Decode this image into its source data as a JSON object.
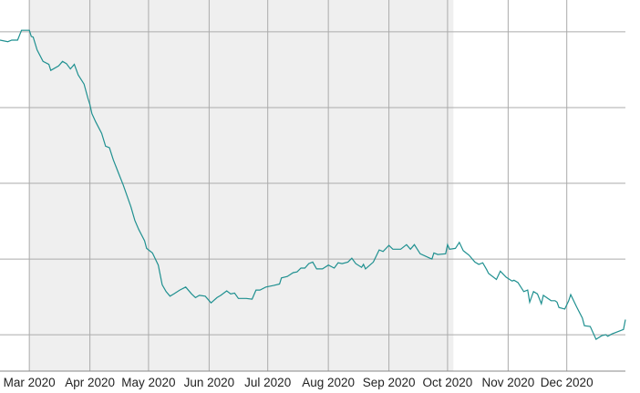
{
  "chart_data": {
    "type": "line",
    "title": "",
    "xlabel": "",
    "ylabel": "",
    "x_tick_labels": [
      "Mar 2020",
      "Apr 2020",
      "May 2020",
      "Jun 2020",
      "Jul 2020",
      "Aug 2020",
      "Sep 2020",
      "Oct 2020",
      "Nov 2020",
      "Dec 2020"
    ],
    "x_ticks": [
      "2020-03-01",
      "2020-04-01",
      "2020-05-01",
      "2020-06-01",
      "2020-07-01",
      "2020-08-01",
      "2020-09-01",
      "2020-10-01",
      "2020-11-01",
      "2020-12-01"
    ],
    "xlim": [
      "2020-02-15",
      "2020-12-31"
    ],
    "y_gridlines": [
      1,
      2,
      3,
      4,
      5
    ],
    "y_tick_labels_shown": false,
    "ylim": [
      0.52,
      5.42
    ],
    "grid": true,
    "shaded_region": {
      "start": "2020-03-01",
      "end": "2020-10-04",
      "color": "#efefef"
    },
    "colors": {
      "line": "#1f9090",
      "grid": "#ababab",
      "axis": "#888888"
    },
    "series": [
      {
        "x": [
          "2020-02-15",
          "2020-02-19",
          "2020-02-21",
          "2020-02-24",
          "2020-02-26",
          "2020-03-01",
          "2020-03-02",
          "2020-03-03",
          "2020-03-05",
          "2020-03-08",
          "2020-03-11",
          "2020-03-12",
          "2020-03-16",
          "2020-03-18",
          "2020-03-20",
          "2020-03-22",
          "2020-03-24",
          "2020-03-26",
          "2020-03-29",
          "2020-03-31",
          "2020-04-01",
          "2020-04-02",
          "2020-04-04",
          "2020-04-07",
          "2020-04-09",
          "2020-04-11",
          "2020-04-13",
          "2020-04-16",
          "2020-04-18",
          "2020-04-22",
          "2020-04-24",
          "2020-04-26",
          "2020-04-29",
          "2020-04-30",
          "2020-05-03",
          "2020-05-06",
          "2020-05-08",
          "2020-05-10",
          "2020-05-12",
          "2020-05-14",
          "2020-05-17",
          "2020-05-20",
          "2020-05-23",
          "2020-05-25",
          "2020-05-27",
          "2020-05-30",
          "2020-06-02",
          "2020-06-05",
          "2020-06-07",
          "2020-06-10",
          "2020-06-12",
          "2020-06-14",
          "2020-06-16",
          "2020-06-20",
          "2020-06-23",
          "2020-06-25",
          "2020-06-27",
          "2020-06-30",
          "2020-07-04",
          "2020-07-07",
          "2020-07-08",
          "2020-07-11",
          "2020-07-14",
          "2020-07-16",
          "2020-07-18",
          "2020-07-20",
          "2020-07-22",
          "2020-07-24",
          "2020-07-26",
          "2020-07-29",
          "2020-08-01",
          "2020-08-04",
          "2020-08-06",
          "2020-08-08",
          "2020-08-11",
          "2020-08-13",
          "2020-08-15",
          "2020-08-18",
          "2020-08-19",
          "2020-08-20",
          "2020-08-24",
          "2020-08-27",
          "2020-08-29",
          "2020-09-01",
          "2020-09-03",
          "2020-09-07",
          "2020-09-10",
          "2020-09-12",
          "2020-09-14",
          "2020-09-17",
          "2020-09-22",
          "2020-09-23",
          "2020-09-24",
          "2020-09-26",
          "2020-09-30",
          "2020-10-01",
          "2020-10-02",
          "2020-10-05",
          "2020-10-07",
          "2020-10-09",
          "2020-10-12",
          "2020-10-15",
          "2020-10-17",
          "2020-10-19",
          "2020-10-21",
          "2020-10-22",
          "2020-10-26",
          "2020-10-28",
          "2020-10-31",
          "2020-11-03",
          "2020-11-04",
          "2020-11-06",
          "2020-11-09",
          "2020-11-11",
          "2020-11-12",
          "2020-11-14",
          "2020-11-16",
          "2020-11-18",
          "2020-11-19",
          "2020-11-23",
          "2020-11-25",
          "2020-11-26",
          "2020-11-27",
          "2020-11-30",
          "2020-12-02",
          "2020-12-03",
          "2020-12-06",
          "2020-12-09",
          "2020-12-10",
          "2020-12-13",
          "2020-12-16",
          "2020-12-19",
          "2020-12-21",
          "2020-12-22",
          "2020-12-24",
          "2020-12-30",
          "2020-12-31"
        ],
        "y": [
          4.89,
          4.87,
          4.89,
          4.89,
          5.02,
          5.02,
          4.94,
          4.93,
          4.76,
          4.61,
          4.57,
          4.49,
          4.55,
          4.61,
          4.58,
          4.51,
          4.57,
          4.43,
          4.31,
          4.12,
          4.04,
          3.92,
          3.81,
          3.66,
          3.49,
          3.47,
          3.31,
          3.11,
          2.98,
          2.69,
          2.51,
          2.39,
          2.24,
          2.14,
          2.08,
          1.92,
          1.66,
          1.57,
          1.51,
          1.54,
          1.59,
          1.63,
          1.54,
          1.49,
          1.52,
          1.51,
          1.42,
          1.49,
          1.52,
          1.58,
          1.54,
          1.55,
          1.48,
          1.48,
          1.47,
          1.59,
          1.59,
          1.63,
          1.65,
          1.67,
          1.75,
          1.77,
          1.82,
          1.83,
          1.88,
          1.88,
          1.94,
          1.96,
          1.87,
          1.87,
          1.92,
          1.88,
          1.95,
          1.94,
          1.96,
          2.01,
          1.94,
          1.89,
          1.93,
          1.87,
          1.96,
          2.12,
          2.1,
          2.18,
          2.13,
          2.13,
          2.19,
          2.13,
          2.19,
          2.07,
          2.01,
          2.0,
          2.08,
          2.06,
          2.07,
          2.19,
          2.13,
          2.14,
          2.22,
          2.11,
          2.05,
          1.96,
          1.93,
          1.95,
          1.86,
          1.81,
          1.73,
          1.84,
          1.76,
          1.71,
          1.72,
          1.69,
          1.57,
          1.59,
          1.43,
          1.57,
          1.54,
          1.41,
          1.52,
          1.45,
          1.45,
          1.43,
          1.36,
          1.34,
          1.45,
          1.53,
          1.37,
          1.22,
          1.12,
          1.11,
          0.94,
          0.99,
          1.0,
          0.98,
          1.01,
          1.07,
          1.2
        ]
      }
    ]
  }
}
